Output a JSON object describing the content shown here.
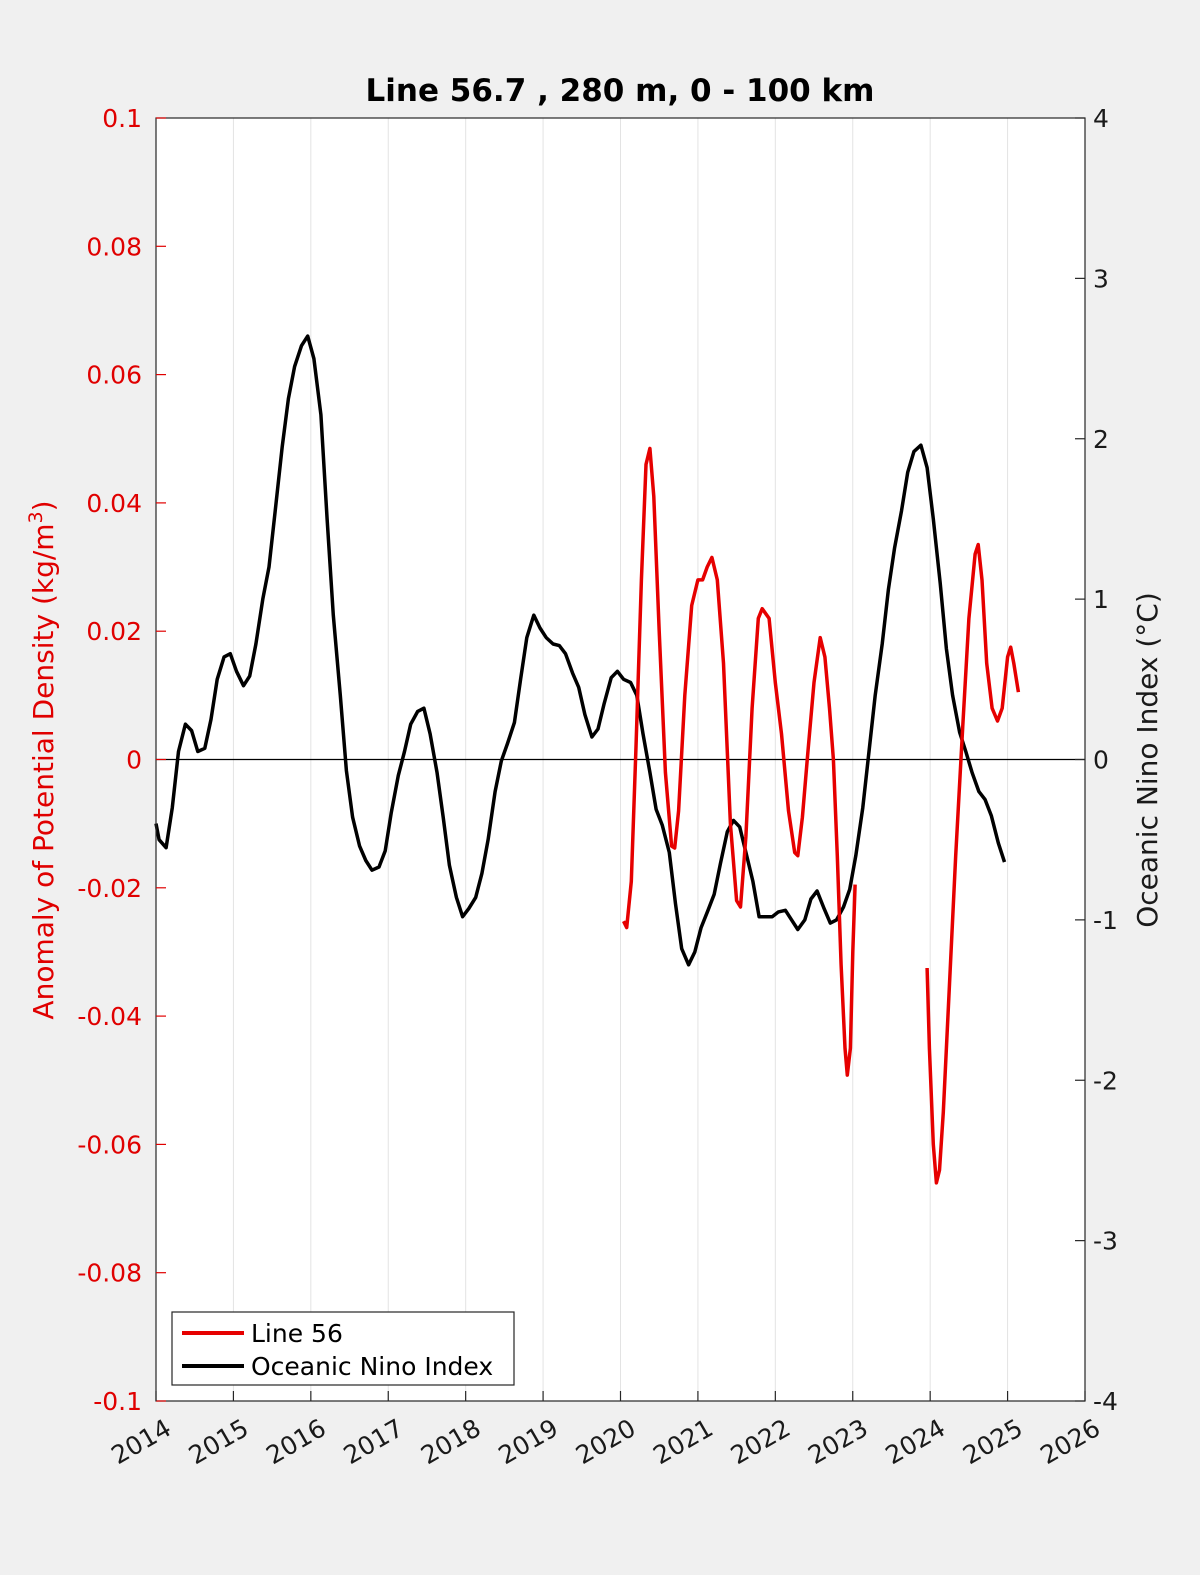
{
  "chart_data": {
    "type": "line",
    "title": "Line 56.7 , 280 m, 0 - 100 km",
    "ylabel_left": "Anomaly of Potential Density (kg/m",
    "ylabel_left_superscript": "3",
    "ylabel_left_close": ")",
    "ylabel_right": "Oceanic Nino Index (°C)",
    "xlim": [
      2014,
      2026
    ],
    "ylim_left": [
      -0.1,
      0.1
    ],
    "ylim_right": [
      -4,
      4
    ],
    "x_ticks": [
      "2014",
      "2015",
      "2016",
      "2017",
      "2018",
      "2019",
      "2020",
      "2021",
      "2022",
      "2023",
      "2024",
      "2025",
      "2026"
    ],
    "y_left_ticks": [
      "0.1",
      "0.08",
      "0.06",
      "0.04",
      "0.02",
      "0",
      "-0.02",
      "-0.04",
      "-0.06",
      "-0.08",
      "-0.1"
    ],
    "y_right_ticks": [
      "4",
      "3",
      "2",
      "1",
      "0",
      "-1",
      "-2",
      "-3",
      "-4"
    ],
    "grid": "vertical",
    "zero_line": true,
    "legend_position": "bottom-left",
    "colors": {
      "line56": "#e60000",
      "oni": "#000000",
      "left_axis": "#e00000",
      "right_axis": "#1a1a1a"
    },
    "series": [
      {
        "name": "Line 56",
        "axis": "left",
        "segments": [
          [
            [
              2020.04,
              -0.0252
            ],
            [
              2020.08,
              -0.0262
            ],
            [
              2020.14,
              -0.019
            ],
            [
              2020.2,
              0.002
            ],
            [
              2020.27,
              0.028
            ],
            [
              2020.33,
              0.046
            ],
            [
              2020.38,
              0.0485
            ],
            [
              2020.43,
              0.041
            ],
            [
              2020.5,
              0.02
            ],
            [
              2020.58,
              -0.002
            ],
            [
              2020.66,
              -0.0135
            ],
            [
              2020.7,
              -0.0138
            ],
            [
              2020.75,
              -0.008
            ],
            [
              2020.83,
              0.01
            ],
            [
              2020.92,
              0.024
            ],
            [
              2021.0,
              0.028
            ],
            [
              2021.06,
              0.028
            ],
            [
              2021.12,
              0.03
            ],
            [
              2021.18,
              0.0315
            ],
            [
              2021.25,
              0.028
            ],
            [
              2021.33,
              0.015
            ],
            [
              2021.42,
              -0.01
            ],
            [
              2021.5,
              -0.022
            ],
            [
              2021.55,
              -0.023
            ],
            [
              2021.62,
              -0.012
            ],
            [
              2021.7,
              0.008
            ],
            [
              2021.78,
              0.022
            ],
            [
              2021.83,
              0.0235
            ],
            [
              2021.92,
              0.022
            ],
            [
              2022.0,
              0.012
            ],
            [
              2022.08,
              0.004
            ],
            [
              2022.17,
              -0.008
            ],
            [
              2022.25,
              -0.0145
            ],
            [
              2022.29,
              -0.015
            ],
            [
              2022.35,
              -0.009
            ],
            [
              2022.42,
              0.001
            ],
            [
              2022.5,
              0.012
            ],
            [
              2022.58,
              0.019
            ],
            [
              2022.64,
              0.016
            ],
            [
              2022.7,
              0.008
            ],
            [
              2022.75,
              0.0
            ],
            [
              2022.8,
              -0.015
            ],
            [
              2022.85,
              -0.032
            ],
            [
              2022.9,
              -0.045
            ],
            [
              2022.93,
              -0.0492
            ],
            [
              2022.97,
              -0.045
            ],
            [
              2023.0,
              -0.03
            ],
            [
              2023.03,
              -0.0195
            ]
          ],
          [
            [
              2023.96,
              -0.0325
            ],
            [
              2023.99,
              -0.045
            ],
            [
              2024.04,
              -0.06
            ],
            [
              2024.08,
              -0.066
            ],
            [
              2024.12,
              -0.064
            ],
            [
              2024.17,
              -0.055
            ],
            [
              2024.25,
              -0.035
            ],
            [
              2024.33,
              -0.015
            ],
            [
              2024.42,
              0.005
            ],
            [
              2024.5,
              0.022
            ],
            [
              2024.58,
              0.032
            ],
            [
              2024.62,
              0.0335
            ],
            [
              2024.67,
              0.028
            ],
            [
              2024.73,
              0.015
            ],
            [
              2024.8,
              0.008
            ],
            [
              2024.87,
              0.006
            ],
            [
              2024.93,
              0.008
            ],
            [
              2025.0,
              0.016
            ],
            [
              2025.04,
              0.0175
            ],
            [
              2025.08,
              0.015
            ],
            [
              2025.14,
              0.0105
            ]
          ]
        ]
      },
      {
        "name": "Oceanic Nino Index",
        "axis": "right",
        "points": [
          [
            2014.0,
            -0.4
          ],
          [
            2014.04,
            -0.5
          ],
          [
            2014.13,
            -0.55
          ],
          [
            2014.21,
            -0.3
          ],
          [
            2014.29,
            0.05
          ],
          [
            2014.38,
            0.22
          ],
          [
            2014.46,
            0.18
          ],
          [
            2014.54,
            0.05
          ],
          [
            2014.63,
            0.07
          ],
          [
            2014.71,
            0.25
          ],
          [
            2014.79,
            0.5
          ],
          [
            2014.88,
            0.64
          ],
          [
            2014.96,
            0.66
          ],
          [
            2015.04,
            0.55
          ],
          [
            2015.13,
            0.46
          ],
          [
            2015.21,
            0.52
          ],
          [
            2015.29,
            0.72
          ],
          [
            2015.38,
            1.0
          ],
          [
            2015.46,
            1.2
          ],
          [
            2015.54,
            1.55
          ],
          [
            2015.63,
            1.95
          ],
          [
            2015.71,
            2.25
          ],
          [
            2015.79,
            2.45
          ],
          [
            2015.88,
            2.58
          ],
          [
            2015.96,
            2.64
          ],
          [
            2016.04,
            2.5
          ],
          [
            2016.13,
            2.15
          ],
          [
            2016.21,
            1.5
          ],
          [
            2016.29,
            0.9
          ],
          [
            2016.38,
            0.4
          ],
          [
            2016.46,
            -0.07
          ],
          [
            2016.54,
            -0.36
          ],
          [
            2016.63,
            -0.54
          ],
          [
            2016.71,
            -0.63
          ],
          [
            2016.79,
            -0.69
          ],
          [
            2016.88,
            -0.67
          ],
          [
            2016.96,
            -0.57
          ],
          [
            2017.04,
            -0.33
          ],
          [
            2017.13,
            -0.1
          ],
          [
            2017.21,
            0.05
          ],
          [
            2017.29,
            0.22
          ],
          [
            2017.38,
            0.3
          ],
          [
            2017.46,
            0.32
          ],
          [
            2017.54,
            0.16
          ],
          [
            2017.63,
            -0.08
          ],
          [
            2017.71,
            -0.36
          ],
          [
            2017.79,
            -0.66
          ],
          [
            2017.88,
            -0.86
          ],
          [
            2017.96,
            -0.98
          ],
          [
            2018.04,
            -0.93
          ],
          [
            2018.13,
            -0.86
          ],
          [
            2018.21,
            -0.71
          ],
          [
            2018.29,
            -0.5
          ],
          [
            2018.38,
            -0.2
          ],
          [
            2018.46,
            -0.01
          ],
          [
            2018.54,
            0.1
          ],
          [
            2018.63,
            0.23
          ],
          [
            2018.71,
            0.5
          ],
          [
            2018.79,
            0.76
          ],
          [
            2018.88,
            0.9
          ],
          [
            2018.96,
            0.82
          ],
          [
            2019.04,
            0.76
          ],
          [
            2019.13,
            0.72
          ],
          [
            2019.21,
            0.71
          ],
          [
            2019.29,
            0.66
          ],
          [
            2019.38,
            0.54
          ],
          [
            2019.46,
            0.45
          ],
          [
            2019.54,
            0.28
          ],
          [
            2019.63,
            0.14
          ],
          [
            2019.71,
            0.19
          ],
          [
            2019.79,
            0.35
          ],
          [
            2019.88,
            0.51
          ],
          [
            2019.96,
            0.55
          ],
          [
            2020.04,
            0.5
          ],
          [
            2020.13,
            0.48
          ],
          [
            2020.21,
            0.4
          ],
          [
            2020.29,
            0.16
          ],
          [
            2020.38,
            -0.08
          ],
          [
            2020.46,
            -0.31
          ],
          [
            2020.54,
            -0.41
          ],
          [
            2020.63,
            -0.58
          ],
          [
            2020.71,
            -0.9
          ],
          [
            2020.79,
            -1.18
          ],
          [
            2020.88,
            -1.28
          ],
          [
            2020.96,
            -1.2
          ],
          [
            2021.04,
            -1.05
          ],
          [
            2021.13,
            -0.94
          ],
          [
            2021.21,
            -0.84
          ],
          [
            2021.29,
            -0.65
          ],
          [
            2021.38,
            -0.45
          ],
          [
            2021.46,
            -0.38
          ],
          [
            2021.54,
            -0.42
          ],
          [
            2021.63,
            -0.6
          ],
          [
            2021.71,
            -0.76
          ],
          [
            2021.79,
            -0.98
          ],
          [
            2021.88,
            -0.98
          ],
          [
            2021.96,
            -0.98
          ],
          [
            2022.04,
            -0.95
          ],
          [
            2022.13,
            -0.94
          ],
          [
            2022.21,
            -1.0
          ],
          [
            2022.29,
            -1.06
          ],
          [
            2022.38,
            -1.0
          ],
          [
            2022.46,
            -0.87
          ],
          [
            2022.54,
            -0.82
          ],
          [
            2022.63,
            -0.93
          ],
          [
            2022.71,
            -1.02
          ],
          [
            2022.79,
            -1.0
          ],
          [
            2022.88,
            -0.92
          ],
          [
            2022.96,
            -0.81
          ],
          [
            2023.04,
            -0.6
          ],
          [
            2023.13,
            -0.3
          ],
          [
            2023.21,
            0.05
          ],
          [
            2023.29,
            0.4
          ],
          [
            2023.38,
            0.72
          ],
          [
            2023.46,
            1.06
          ],
          [
            2023.54,
            1.32
          ],
          [
            2023.63,
            1.55
          ],
          [
            2023.71,
            1.79
          ],
          [
            2023.79,
            1.92
          ],
          [
            2023.88,
            1.96
          ],
          [
            2023.96,
            1.82
          ],
          [
            2024.04,
            1.5
          ],
          [
            2024.13,
            1.1
          ],
          [
            2024.21,
            0.69
          ],
          [
            2024.29,
            0.4
          ],
          [
            2024.38,
            0.17
          ],
          [
            2024.46,
            0.05
          ],
          [
            2024.54,
            -0.08
          ],
          [
            2024.63,
            -0.2
          ],
          [
            2024.71,
            -0.25
          ],
          [
            2024.79,
            -0.35
          ],
          [
            2024.88,
            -0.52
          ],
          [
            2024.96,
            -0.64
          ]
        ]
      }
    ]
  }
}
